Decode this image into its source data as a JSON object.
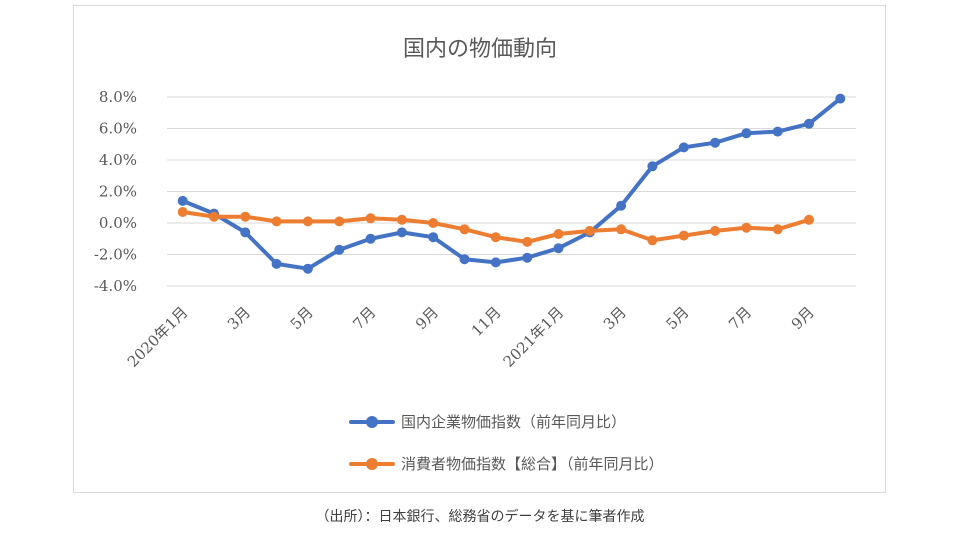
{
  "chart_data": {
    "type": "line",
    "title": "国内の物価動向",
    "categories": [
      "2020年1月",
      "",
      "3月",
      "",
      "5月",
      "",
      "7月",
      "",
      "9月",
      "",
      "11月",
      "",
      "2021年1月",
      "",
      "3月",
      "",
      "5月",
      "",
      "7月",
      "",
      "9月",
      ""
    ],
    "y_ticks": [
      "8.0%",
      "6.0%",
      "4.0%",
      "2.0%",
      "0.0%",
      "-2.0%",
      "-4.0%"
    ],
    "ylim": [
      -4,
      8
    ],
    "grid": true,
    "legend_position": "bottom",
    "series": [
      {
        "name": "国内企業物価指数（前年同月比）",
        "color": "#4472c4",
        "values": [
          1.4,
          0.6,
          -0.6,
          -2.6,
          -2.9,
          -1.7,
          -1.0,
          -0.6,
          -0.9,
          -2.3,
          -2.5,
          -2.2,
          -1.6,
          -0.6,
          1.1,
          3.6,
          4.8,
          5.1,
          5.7,
          5.8,
          6.3,
          7.9
        ]
      },
      {
        "name": "消費者物価指数【総合】（前年同月比）",
        "color": "#ed7d31",
        "values": [
          0.7,
          0.4,
          0.4,
          0.1,
          0.1,
          0.1,
          0.3,
          0.2,
          0.0,
          -0.4,
          -0.9,
          -1.2,
          -0.7,
          -0.5,
          -0.4,
          -1.1,
          -0.8,
          -0.5,
          -0.3,
          -0.4,
          0.2,
          null
        ]
      }
    ]
  },
  "source": "（出所）：日本銀行、総務省のデータを基に筆者作成"
}
